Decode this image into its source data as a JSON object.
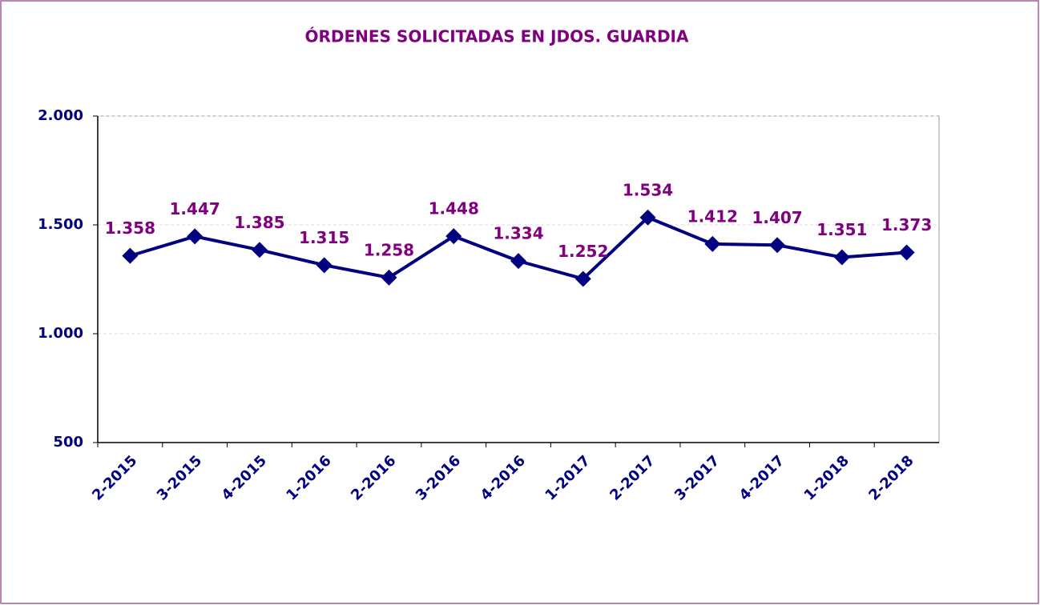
{
  "chart_data": {
    "type": "line",
    "title": "ÓRDENES SOLICITADAS EN JDOS. GUARDIA",
    "categories": [
      "2-2015",
      "3-2015",
      "4-2015",
      "1-2016",
      "2-2016",
      "3-2016",
      "4-2016",
      "1-2017",
      "2-2017",
      "3-2017",
      "4-2017",
      "1-2018",
      "2-2018"
    ],
    "series": [
      {
        "name": "Órdenes",
        "color": "#000080",
        "values": [
          1358,
          1447,
          1385,
          1315,
          1258,
          1448,
          1334,
          1252,
          1534,
          1412,
          1407,
          1351,
          1373
        ],
        "value_labels": [
          "1.358",
          "1.447",
          "1.385",
          "1.315",
          "1.258",
          "1.448",
          "1.334",
          "1.252",
          "1.534",
          "1.412",
          "1.407",
          "1.351",
          "1.373"
        ]
      }
    ],
    "ylim": [
      500,
      2000
    ],
    "yticks": [
      500,
      {
        "value": 1000,
        "label": "1.000"
      },
      {
        "value": 1500,
        "label": "1.500"
      },
      {
        "value": 2000,
        "label": "2.000"
      }
    ],
    "grid": true
  }
}
